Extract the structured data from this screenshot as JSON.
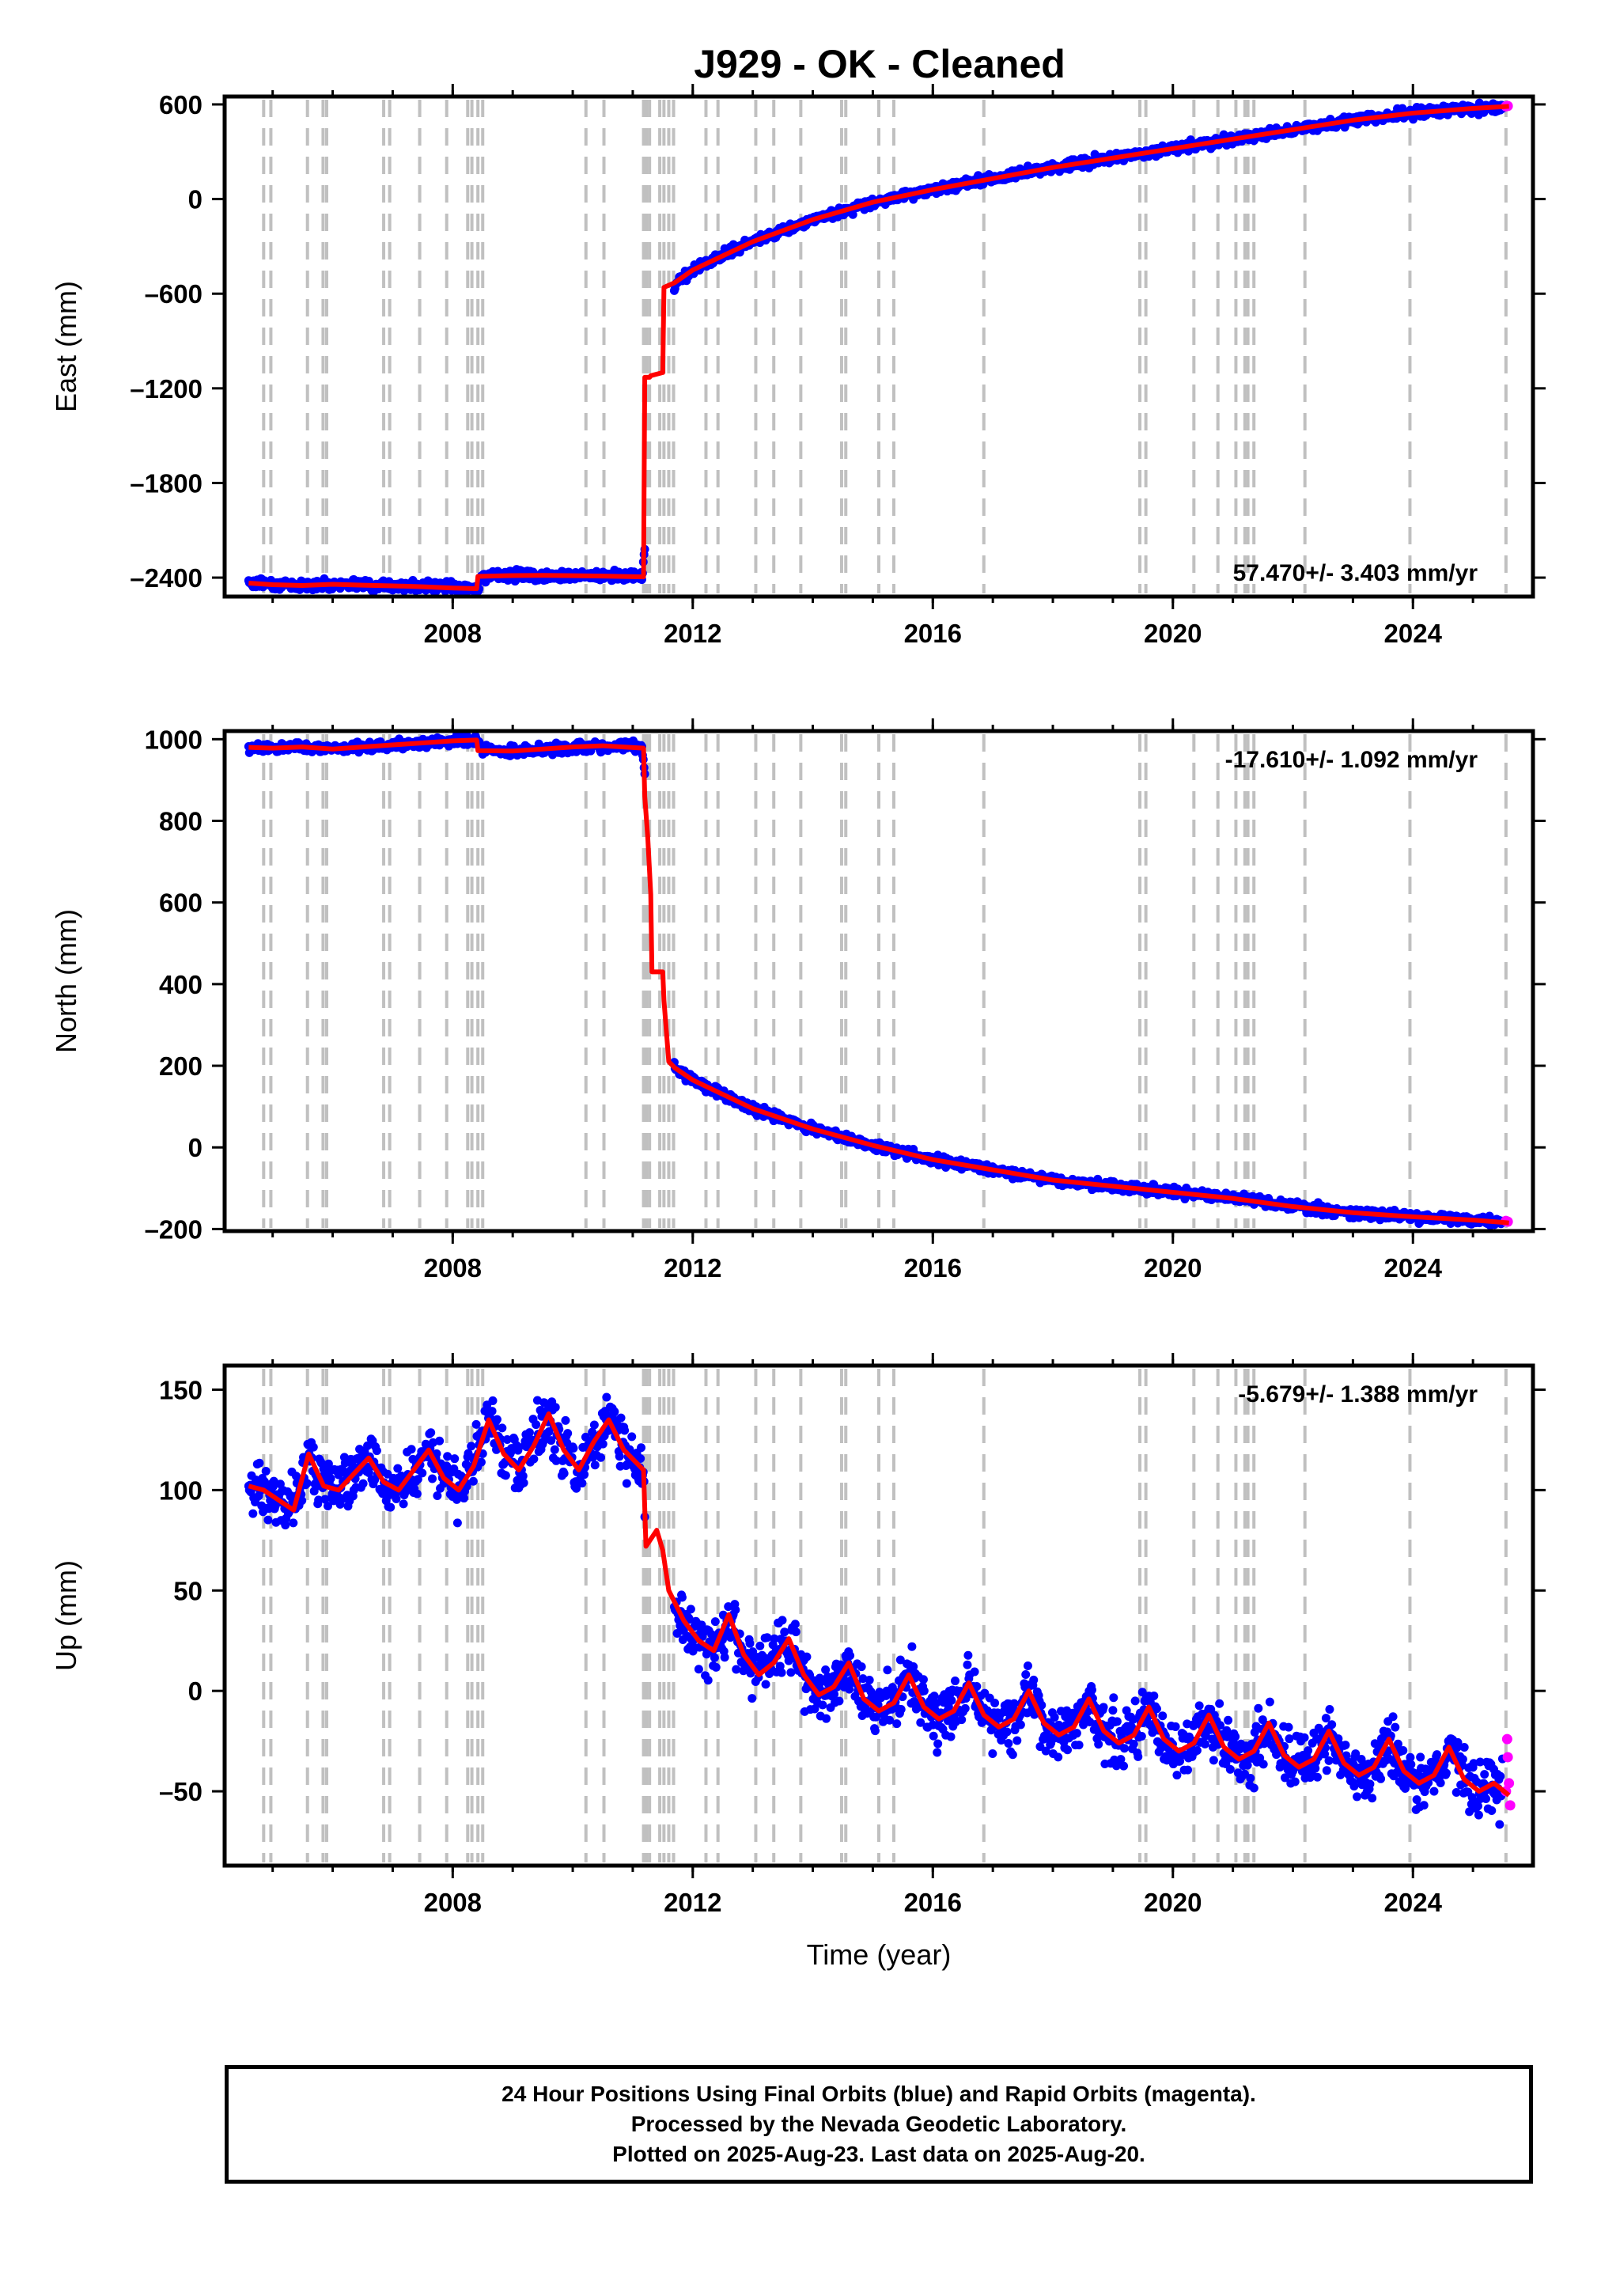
{
  "title": "J929  - OK - Cleaned",
  "colors": {
    "final_orbits": "#0000ff",
    "rapid_orbits": "#ff00ff",
    "model": "#ff0000",
    "event_lines": "#c0c0c0"
  },
  "event_line_years": [
    2004.85,
    2004.97,
    2005.58,
    2005.84,
    2005.9,
    2006.85,
    2006.95,
    2007.45,
    2007.9,
    2008.25,
    2008.32,
    2008.42,
    2008.5,
    2010.22,
    2010.52,
    2011.18,
    2011.23,
    2011.28,
    2011.45,
    2011.52,
    2011.6,
    2011.68,
    2012.22,
    2012.42,
    2013.05,
    2013.35,
    2013.8,
    2014.48,
    2014.55,
    2015.1,
    2015.35,
    2016.85,
    2019.45,
    2019.55,
    2020.35,
    2020.75,
    2021.05,
    2021.2,
    2021.25,
    2021.35,
    2022.2,
    2023.95,
    2025.55
  ],
  "chart_data": [
    {
      "type": "scatter",
      "name": "east",
      "ylabel": "East (mm)",
      "xlim": [
        2004.2,
        2026.0
      ],
      "ylim": [
        -2520,
        650
      ],
      "xticks": [
        2008,
        2012,
        2016,
        2020,
        2024
      ],
      "xtick_labels": [
        "2008",
        "2012",
        "2016",
        "2020",
        "2024"
      ],
      "yticks": [
        -2400,
        -1800,
        -1200,
        -600,
        0,
        600
      ],
      "ytick_labels": [
        "–2400",
        "–1800",
        "–1200",
        "–600",
        "0",
        "600"
      ],
      "rate_label": "57.470+/- 3.403 mm/yr",
      "rate_position": "bottom-right",
      "series": [
        {
          "name": "final-orbits",
          "x": [
            2004.6,
            2005.0,
            2005.5,
            2006.0,
            2006.5,
            2007.0,
            2007.5,
            2008.0,
            2008.4,
            2008.5,
            2009.0,
            2009.5,
            2010.0,
            2010.5,
            2011.15,
            2011.7,
            2012.0,
            2012.5,
            2013.0,
            2014.0,
            2015.0,
            2016.0,
            2017.0,
            2018.0,
            2019.0,
            2020.0,
            2021.0,
            2022.0,
            2023.0,
            2024.0,
            2025.0,
            2025.5
          ],
          "y": [
            -2430,
            -2440,
            -2450,
            -2440,
            -2445,
            -2450,
            -2455,
            -2465,
            -2470,
            -2390,
            -2385,
            -2385,
            -2388,
            -2388,
            -2390,
            -540,
            -450,
            -360,
            -270,
            -130,
            -20,
            60,
            130,
            200,
            260,
            320,
            380,
            440,
            500,
            545,
            575,
            585
          ]
        },
        {
          "name": "rapid-orbits",
          "x": [
            2025.55,
            2025.58
          ],
          "y": [
            588,
            590
          ]
        },
        {
          "name": "model",
          "x": [
            2004.6,
            2005.0,
            2005.5,
            2006.0,
            2006.5,
            2007.0,
            2007.5,
            2008.0,
            2008.4,
            2008.42,
            2009.0,
            2009.5,
            2010.0,
            2010.5,
            2011.18,
            2011.2,
            2011.28,
            2011.3,
            2011.5,
            2011.52,
            2011.7,
            2012.0,
            2012.5,
            2013.0,
            2014.0,
            2015.0,
            2016.0,
            2017.0,
            2018.0,
            2019.0,
            2020.0,
            2021.0,
            2022.0,
            2023.0,
            2024.0,
            2025.0,
            2025.6
          ],
          "y": [
            -2435,
            -2445,
            -2450,
            -2442,
            -2448,
            -2452,
            -2458,
            -2466,
            -2470,
            -2392,
            -2387,
            -2386,
            -2388,
            -2390,
            -2395,
            -1130,
            -1130,
            -1120,
            -1100,
            -560,
            -530,
            -450,
            -360,
            -270,
            -130,
            -20,
            60,
            130,
            200,
            260,
            320,
            380,
            440,
            500,
            545,
            575,
            588
          ]
        }
      ]
    },
    {
      "type": "scatter",
      "name": "north",
      "ylabel": "North (mm)",
      "xlim": [
        2004.2,
        2026.0
      ],
      "ylim": [
        -205,
        1020
      ],
      "xticks": [
        2008,
        2012,
        2016,
        2020,
        2024
      ],
      "xtick_labels": [
        "2008",
        "2012",
        "2016",
        "2020",
        "2024"
      ],
      "yticks": [
        -200,
        0,
        200,
        400,
        600,
        800,
        1000
      ],
      "ytick_labels": [
        "–200",
        "0",
        "200",
        "400",
        "600",
        "800",
        "1000"
      ],
      "rate_label": "-17.610+/- 1.092 mm/yr",
      "rate_position": "top-right",
      "series": [
        {
          "name": "final-orbits",
          "x": [
            2004.6,
            2005.0,
            2005.5,
            2006.0,
            2006.5,
            2007.0,
            2007.5,
            2008.0,
            2008.4,
            2008.5,
            2009.0,
            2009.5,
            2010.0,
            2010.5,
            2011.15,
            2011.7,
            2012.0,
            2012.5,
            2013.0,
            2014.0,
            2015.0,
            2016.0,
            2017.0,
            2018.0,
            2019.0,
            2020.0,
            2021.0,
            2022.0,
            2023.0,
            2024.0,
            2025.0,
            2025.5
          ],
          "y": [
            980,
            978,
            982,
            975,
            980,
            985,
            990,
            995,
            998,
            972,
            970,
            975,
            980,
            984,
            982,
            195,
            165,
            130,
            95,
            45,
            5,
            -30,
            -55,
            -80,
            -95,
            -110,
            -125,
            -145,
            -160,
            -170,
            -178,
            -182
          ]
        },
        {
          "name": "rapid-orbits",
          "x": [
            2025.55,
            2025.58
          ],
          "y": [
            -180,
            -182
          ]
        },
        {
          "name": "model",
          "x": [
            2004.6,
            2005.0,
            2005.5,
            2006.0,
            2006.5,
            2007.0,
            2007.5,
            2008.0,
            2008.4,
            2008.42,
            2009.0,
            2009.5,
            2010.0,
            2010.5,
            2011.18,
            2011.2,
            2011.25,
            2011.3,
            2011.32,
            2011.5,
            2011.52,
            2011.6,
            2011.7,
            2012.0,
            2012.5,
            2013.0,
            2014.0,
            2015.0,
            2016.0,
            2017.0,
            2018.0,
            2019.0,
            2020.0,
            2021.0,
            2022.0,
            2023.0,
            2024.0,
            2025.0,
            2025.6
          ],
          "y": [
            980,
            978,
            981,
            976,
            981,
            986,
            991,
            996,
            998,
            972,
            971,
            976,
            981,
            984,
            978,
            860,
            760,
            620,
            430,
            430,
            360,
            210,
            195,
            165,
            130,
            95,
            45,
            5,
            -30,
            -55,
            -80,
            -95,
            -110,
            -125,
            -145,
            -160,
            -170,
            -178,
            -185
          ]
        }
      ]
    },
    {
      "type": "scatter",
      "name": "up",
      "ylabel": "Up (mm)",
      "xlabel": "Time (year)",
      "xlim": [
        2004.2,
        2026.0
      ],
      "ylim": [
        -87,
        162
      ],
      "xticks": [
        2008,
        2012,
        2016,
        2020,
        2024
      ],
      "xtick_labels": [
        "2008",
        "2012",
        "2016",
        "2020",
        "2024"
      ],
      "yticks": [
        -50,
        0,
        50,
        100,
        150
      ],
      "ytick_labels": [
        "–50",
        "0",
        "50",
        "100",
        "150"
      ],
      "rate_label": "-5.679+/- 1.388 mm/yr",
      "rate_position": "top-right",
      "series": [
        {
          "name": "final-orbits",
          "x": [
            2004.6,
            2004.8,
            2005.1,
            2005.3,
            2005.6,
            2005.9,
            2006.1,
            2006.6,
            2007.1,
            2007.6,
            2008.1,
            2008.6,
            2009.1,
            2009.6,
            2010.1,
            2010.6,
            2011.1,
            2011.4,
            2011.7,
            2012.0,
            2012.6,
            2013.0,
            2013.6,
            2014.0,
            2014.6,
            2015.0,
            2015.6,
            2016.0,
            2016.6,
            2017.0,
            2017.6,
            2018.0,
            2018.6,
            2019.0,
            2019.6,
            2020.0,
            2020.6,
            2021.0,
            2021.6,
            2022.0,
            2022.6,
            2023.0,
            2023.6,
            2024.0,
            2024.6,
            2025.0,
            2025.5
          ],
          "y": [
            100,
            115,
            90,
            88,
            120,
            95,
            100,
            118,
            100,
            122,
            102,
            135,
            110,
            135,
            108,
            130,
            112,
            70,
            55,
            30,
            35,
            10,
            25,
            -5,
            15,
            -10,
            10,
            -15,
            5,
            -20,
            -5,
            -25,
            -10,
            -30,
            -15,
            -35,
            -20,
            -40,
            -25,
            -45,
            -30,
            -50,
            -35,
            -55,
            -40,
            -60,
            -55
          ]
        },
        {
          "name": "rapid-orbits",
          "x": [
            2025.55,
            2025.57,
            2025.58,
            2025.6,
            2025.62
          ],
          "y": [
            -50,
            -24,
            -33,
            -46,
            -57
          ]
        },
        {
          "name": "model",
          "x": [
            2004.6,
            2004.85,
            2005.1,
            2005.35,
            2005.6,
            2005.85,
            2006.1,
            2006.35,
            2006.6,
            2006.85,
            2007.1,
            2007.35,
            2007.6,
            2007.85,
            2008.1,
            2008.35,
            2008.6,
            2008.85,
            2009.1,
            2009.35,
            2009.6,
            2009.85,
            2010.1,
            2010.35,
            2010.6,
            2010.85,
            2011.18,
            2011.22,
            2011.4,
            2011.5,
            2011.6,
            2011.85,
            2012.1,
            2012.35,
            2012.6,
            2012.85,
            2013.1,
            2013.35,
            2013.6,
            2013.85,
            2014.1,
            2014.35,
            2014.6,
            2014.85,
            2015.1,
            2015.35,
            2015.6,
            2015.85,
            2016.1,
            2016.35,
            2016.6,
            2016.85,
            2017.1,
            2017.35,
            2017.6,
            2017.85,
            2018.1,
            2018.35,
            2018.6,
            2018.85,
            2019.1,
            2019.35,
            2019.6,
            2019.85,
            2020.1,
            2020.35,
            2020.6,
            2020.85,
            2021.1,
            2021.35,
            2021.6,
            2021.85,
            2022.1,
            2022.35,
            2022.6,
            2022.85,
            2023.1,
            2023.35,
            2023.6,
            2023.85,
            2024.1,
            2024.35,
            2024.6,
            2024.85,
            2025.1,
            2025.35,
            2025.6
          ],
          "y": [
            102,
            100,
            95,
            90,
            118,
            102,
            100,
            108,
            116,
            104,
            100,
            110,
            120,
            106,
            100,
            112,
            135,
            118,
            110,
            122,
            138,
            120,
            110,
            124,
            135,
            120,
            110,
            72,
            80,
            70,
            50,
            35,
            25,
            20,
            38,
            18,
            8,
            14,
            26,
            8,
            -2,
            2,
            14,
            -4,
            -10,
            -6,
            8,
            -8,
            -14,
            -10,
            4,
            -12,
            -18,
            -14,
            0,
            -16,
            -22,
            -18,
            -4,
            -20,
            -26,
            -22,
            -8,
            -24,
            -30,
            -26,
            -12,
            -28,
            -34,
            -30,
            -16,
            -32,
            -38,
            -34,
            -20,
            -36,
            -42,
            -38,
            -24,
            -40,
            -46,
            -42,
            -28,
            -44,
            -50,
            -46,
            -52
          ]
        }
      ]
    }
  ],
  "footer": {
    "line1": "24 Hour Positions Using Final Orbits (blue) and Rapid Orbits (magenta).",
    "line2": "Processed by the Nevada Geodetic Laboratory.",
    "line3": "Plotted on 2025-Aug-23. Last data on 2025-Aug-20."
  }
}
